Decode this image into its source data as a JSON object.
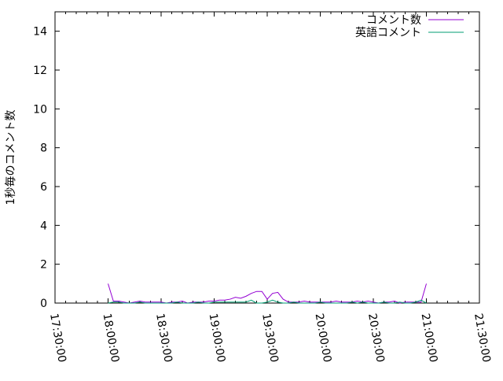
{
  "chart_data": {
    "type": "line",
    "title": "",
    "xlabel": "",
    "ylabel": "1秒毎のコメント数",
    "xlim": [
      "17:30:00",
      "21:30:00"
    ],
    "ylim": [
      0,
      15
    ],
    "xticks": [
      "17:30:00",
      "18:00:00",
      "18:30:00",
      "19:00:00",
      "19:30:00",
      "20:00:00",
      "20:30:00",
      "21:00:00",
      "21:30:00"
    ],
    "yticks": [
      "0",
      "2",
      "4",
      "6",
      "8",
      "10",
      "12",
      "14"
    ],
    "grid": false,
    "legend_position": "top-right",
    "x": [
      "18:00",
      "18:03",
      "18:06",
      "18:09",
      "18:12",
      "18:15",
      "18:18",
      "18:21",
      "18:24",
      "18:27",
      "18:30",
      "18:33",
      "18:36",
      "18:39",
      "18:42",
      "18:45",
      "18:48",
      "18:51",
      "18:54",
      "18:57",
      "19:00",
      "19:03",
      "19:06",
      "19:09",
      "19:12",
      "19:15",
      "19:18",
      "19:21",
      "19:24",
      "19:27",
      "19:30",
      "19:33",
      "19:36",
      "19:39",
      "19:42",
      "19:45",
      "19:48",
      "19:51",
      "19:54",
      "19:57",
      "20:00",
      "20:03",
      "20:06",
      "20:09",
      "20:12",
      "20:15",
      "20:18",
      "20:21",
      "20:24",
      "20:27",
      "20:30",
      "20:33",
      "20:36",
      "20:39",
      "20:42",
      "20:45",
      "20:48",
      "20:51",
      "20:54",
      "20:57",
      "21:00"
    ],
    "series": [
      {
        "name": "コメント数",
        "color": "#9400d3",
        "values": [
          1.0,
          0.1,
          0.1,
          0.05,
          0,
          0.05,
          0.1,
          0.05,
          0.05,
          0.05,
          0.05,
          0,
          0.05,
          0.05,
          0.1,
          0,
          0.05,
          0.05,
          0.05,
          0.1,
          0.1,
          0.15,
          0.15,
          0.2,
          0.3,
          0.25,
          0.35,
          0.5,
          0.6,
          0.6,
          0.2,
          0.5,
          0.55,
          0.2,
          0.05,
          0.05,
          0.05,
          0.1,
          0.05,
          0.05,
          0.05,
          0.05,
          0.05,
          0.1,
          0.05,
          0.05,
          0.05,
          0.1,
          0.05,
          0.1,
          0.05,
          0,
          0.05,
          0.05,
          0.1,
          0,
          0.05,
          0.05,
          0.05,
          0.05,
          1.0
        ]
      },
      {
        "name": "英語コメント",
        "color": "#009e73",
        "values": [
          0,
          0.05,
          0.05,
          0,
          0,
          0,
          0.05,
          0,
          0,
          0,
          0,
          0,
          0,
          0.05,
          0,
          0,
          0,
          0.05,
          0,
          0,
          0.05,
          0.05,
          0.05,
          0.05,
          0.05,
          0.05,
          0.05,
          0.15,
          0,
          0,
          0.05,
          0.15,
          0.05,
          0,
          0,
          0.05,
          0,
          0,
          0,
          0,
          0.05,
          0,
          0,
          0,
          0,
          0,
          0.05,
          0,
          0.05,
          0,
          0,
          0,
          0.05,
          0,
          0,
          0.05,
          0,
          0,
          0.05,
          0.15,
          0
        ]
      }
    ]
  }
}
